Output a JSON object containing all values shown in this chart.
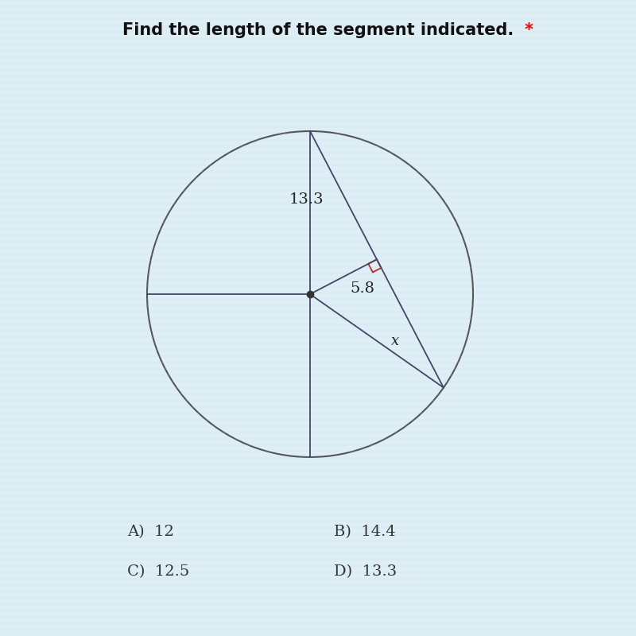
{
  "title": "Find the length of the segment indicated.",
  "title_star": "*",
  "background_color_top": "#e8f4f8",
  "background_color": "#e8e8d8",
  "circle_color": "#555555",
  "line_color": "#444466",
  "right_angle_color": "#cc2222",
  "dot_color": "#333333",
  "label_133": "13.3",
  "label_58": "5.8",
  "label_x": "x",
  "answers": [
    "A)  12",
    "B)  14.4",
    "C)  12.5",
    "D)  13.3"
  ],
  "title_fontsize": 15,
  "answer_fontsize": 14
}
